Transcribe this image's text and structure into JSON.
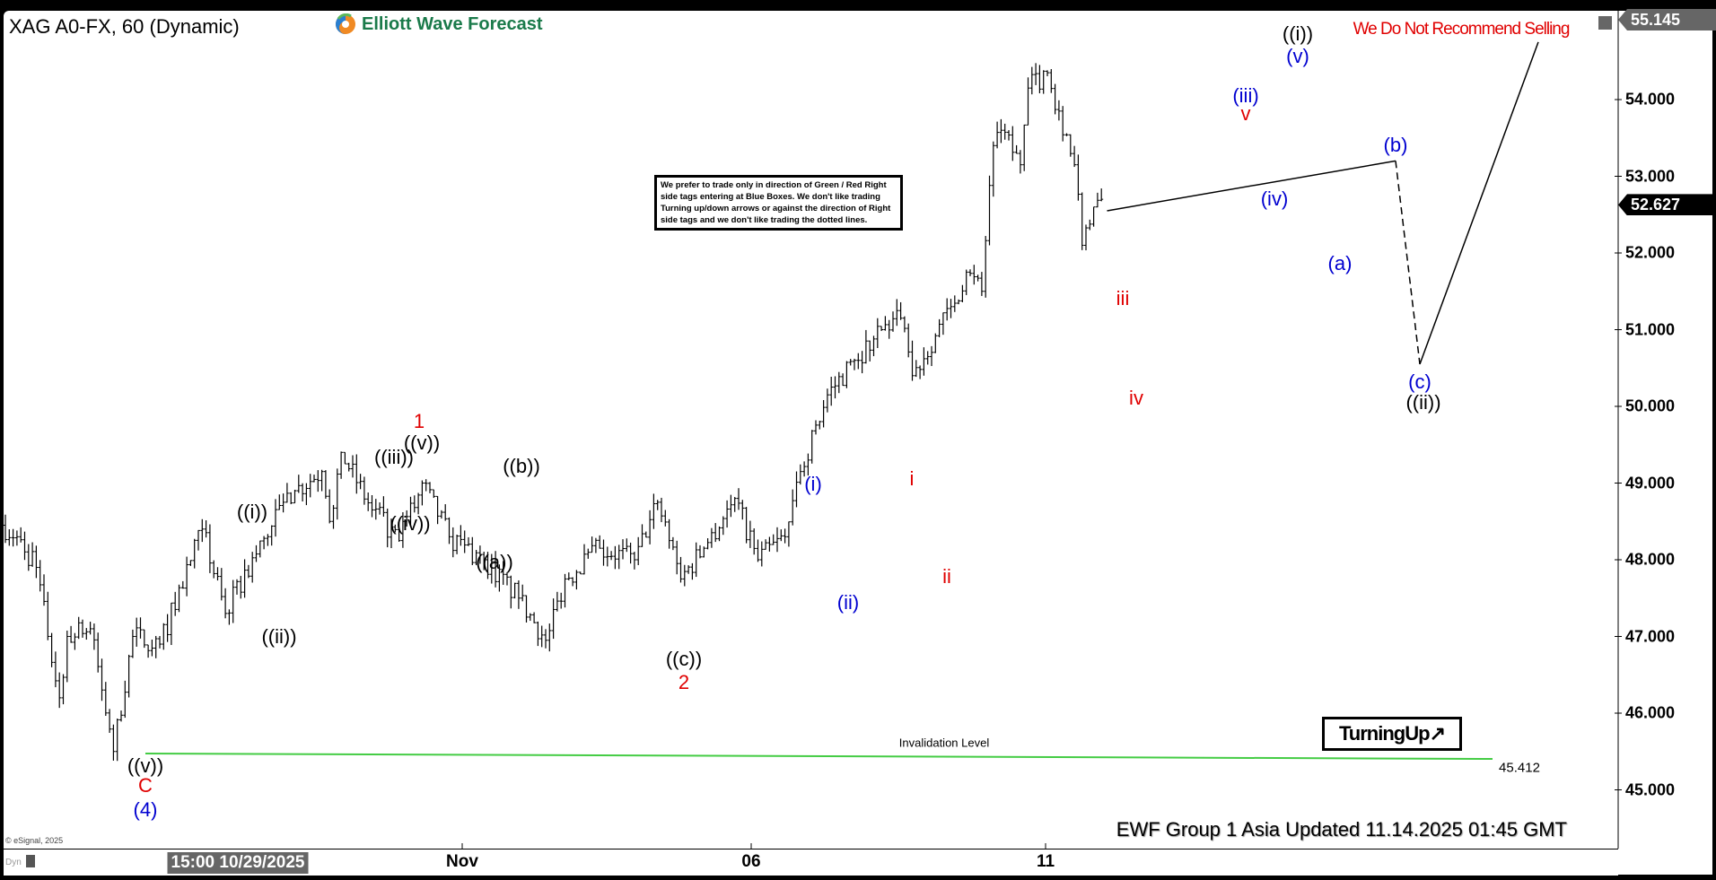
{
  "header": {
    "title": "XAG A0-FX, 60 (Dynamic)",
    "logo_text": "Elliott Wave Forecast",
    "warning": "We Do Not Recommend Selling"
  },
  "notice": "We prefer to trade only in direction of Green / Red Right side tags entering at Blue Boxes. We don't like trading Turning up/down arrows or against the direction of Right side tags and we don't like trading the dotted lines.",
  "turning_label": "TurningUp",
  "turning_icon": "arrow-up-right-icon",
  "footer": {
    "updated": "EWF Group 1 Asia Updated 11.14.2025 01:45 GMT",
    "copyright": "© eSignal, 2025",
    "dyn": "Dyn"
  },
  "colors": {
    "invalidation": "#44cc44",
    "red": "#e00000",
    "blue": "#0000d0",
    "green_logo": "#1a7a4a"
  },
  "chart_data": {
    "type": "ohlc-bar",
    "symbol": "XAG A0-FX",
    "interval": "60",
    "ylim": [
      44.3,
      55.3
    ],
    "y_ticks": [
      "45.000",
      "46.000",
      "47.000",
      "48.000",
      "49.000",
      "50.000",
      "51.000",
      "52.000",
      "53.000",
      "54.000"
    ],
    "y_tick_values": [
      45,
      46,
      47,
      48,
      49,
      50,
      51,
      52,
      53,
      54
    ],
    "high_tag": "55.145",
    "high_value": 55.145,
    "last_tag": "52.627",
    "last_value": 52.627,
    "x_labels": [
      "15:00 10/29/2025",
      "Nov",
      "06",
      "11"
    ],
    "price_path": [
      [
        0,
        48.45
      ],
      [
        4,
        48.3
      ],
      [
        9,
        47.9
      ],
      [
        15,
        46.2
      ],
      [
        17,
        47.0
      ],
      [
        23,
        47.1
      ],
      [
        29,
        45.5
      ],
      [
        34,
        47.0
      ],
      [
        41,
        46.9
      ],
      [
        52,
        48.4
      ],
      [
        58,
        47.3
      ],
      [
        73,
        48.75
      ],
      [
        76,
        48.9
      ],
      [
        83,
        49.15
      ],
      [
        85,
        48.5
      ],
      [
        88,
        49.4
      ],
      [
        96,
        48.65
      ],
      [
        103,
        48.25
      ],
      [
        109,
        49.0
      ],
      [
        116,
        48.3
      ],
      [
        125,
        48.0
      ],
      [
        134,
        47.5
      ],
      [
        141,
        46.95
      ],
      [
        146,
        47.75
      ],
      [
        155,
        48.15
      ],
      [
        164,
        48.0
      ],
      [
        170,
        48.75
      ],
      [
        176,
        47.75
      ],
      [
        182,
        48.15
      ],
      [
        190,
        48.8
      ],
      [
        196,
        48.0
      ],
      [
        203,
        48.3
      ],
      [
        207,
        49.15
      ],
      [
        214,
        50.15
      ],
      [
        221,
        50.6
      ],
      [
        228,
        51.0
      ],
      [
        233,
        51.15
      ],
      [
        236,
        50.4
      ],
      [
        246,
        51.3
      ],
      [
        250,
        51.75
      ],
      [
        254,
        51.5
      ],
      [
        257,
        53.4
      ],
      [
        259,
        53.6
      ],
      [
        264,
        53.15
      ],
      [
        266,
        54.15
      ],
      [
        271,
        54.35
      ],
      [
        274,
        53.85
      ],
      [
        278,
        53.15
      ],
      [
        280,
        52.1
      ],
      [
        283,
        52.6
      ],
      [
        285,
        52.7
      ]
    ],
    "projection": [
      {
        "label": "(b)",
        "price": 53.2
      },
      {
        "label": "(c)",
        "price": 50.55
      },
      {
        "label": "target",
        "price": 54.75
      }
    ],
    "invalidation": {
      "label": "Invalidation Level",
      "value": "45.412",
      "price": 45.412
    },
    "wave_labels": [
      {
        "t": "((v))",
        "c": "blk"
      },
      {
        "t": "C",
        "c": "red"
      },
      {
        "t": "(4)",
        "c": "blu"
      },
      {
        "t": "((i))",
        "c": "blk"
      },
      {
        "t": "((ii))",
        "c": "blk"
      },
      {
        "t": "((iii))",
        "c": "blk"
      },
      {
        "t": "((v))",
        "c": "blk"
      },
      {
        "t": "1",
        "c": "red"
      },
      {
        "t": "((iv))",
        "c": "blk"
      },
      {
        "t": "((a))",
        "c": "blk"
      },
      {
        "t": "((b))",
        "c": "blk"
      },
      {
        "t": "((c))",
        "c": "blk"
      },
      {
        "t": "2",
        "c": "red"
      },
      {
        "t": "(i)",
        "c": "blu"
      },
      {
        "t": "(ii)",
        "c": "blu"
      },
      {
        "t": "i",
        "c": "red"
      },
      {
        "t": "ii",
        "c": "red"
      },
      {
        "t": "iii",
        "c": "red"
      },
      {
        "t": "iv",
        "c": "red"
      },
      {
        "t": "(iii)",
        "c": "blu"
      },
      {
        "t": "v",
        "c": "red"
      },
      {
        "t": "(iv)",
        "c": "blu"
      },
      {
        "t": "((i))",
        "c": "blk"
      },
      {
        "t": "(v)",
        "c": "blu"
      },
      {
        "t": "(a)",
        "c": "blu"
      },
      {
        "t": "(b)",
        "c": "blu"
      },
      {
        "t": "(c)",
        "c": "blu"
      },
      {
        "t": "((ii))",
        "c": "blk"
      }
    ]
  }
}
